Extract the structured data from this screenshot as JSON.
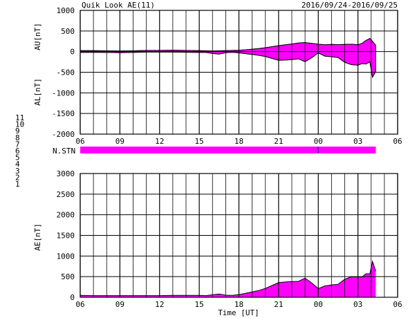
{
  "header": {
    "title": "Quik Look AE(11)",
    "date_range": "2016/09/24-2016/09/25"
  },
  "station_legend": {
    "entries": [
      {
        "label": "11",
        "color": "#00e0e0"
      },
      {
        "label": "10",
        "color": "#ff00ff"
      },
      {
        "label": "9",
        "color": "#2020c0"
      },
      {
        "label": "8",
        "color": "#e8e800"
      },
      {
        "label": "7",
        "color": "#a0e0a0"
      },
      {
        "label": "6",
        "color": "#ff0000"
      },
      {
        "label": "5",
        "color": "#c0c0c0"
      },
      {
        "label": "4",
        "color": "#a0a0a0"
      },
      {
        "label": "3",
        "color": "#20b0b0"
      },
      {
        "label": "2",
        "color": "#ff00ff"
      },
      {
        "label": "1",
        "color": "#2020c0"
      }
    ]
  },
  "stations_bar": {
    "label": "N.STN",
    "color": "#ff00ff",
    "divider_time": 24,
    "end_time": 28.35
  },
  "chart_data": [
    {
      "type": "area",
      "panel": "AU/AL",
      "ylabels": [
        "AU[nT]",
        "AL[nT]"
      ],
      "xlim": [
        6,
        30
      ],
      "ylim": [
        -2000,
        1000
      ],
      "yticks": [
        1000,
        500,
        0,
        -500,
        -1000,
        -1500,
        -2000
      ],
      "xticks": [
        "06",
        "09",
        "12",
        "15",
        "18",
        "21",
        "00",
        "03",
        "06"
      ],
      "grid": true,
      "fill_color": "#ff00ff",
      "x": [
        6,
        7,
        8,
        9,
        10,
        11,
        12,
        13,
        14,
        15,
        15.5,
        16,
        16.5,
        17,
        17.5,
        18,
        18.5,
        19,
        19.5,
        20,
        20.5,
        21,
        21.5,
        22,
        22.5,
        23,
        23.5,
        24,
        24.5,
        25,
        25.5,
        26,
        26.5,
        27,
        27.3,
        27.6,
        27.9,
        28.1,
        28.35
      ],
      "series": [
        {
          "name": "AU",
          "values": [
            25,
            25,
            20,
            15,
            20,
            30,
            30,
            35,
            30,
            25,
            20,
            15,
            20,
            25,
            30,
            35,
            45,
            60,
            75,
            95,
            120,
            145,
            165,
            185,
            210,
            220,
            200,
            180,
            165,
            175,
            170,
            175,
            180,
            165,
            200,
            270,
            320,
            250,
            150
          ]
        },
        {
          "name": "AL",
          "values": [
            -20,
            -15,
            -20,
            -25,
            -20,
            -10,
            -10,
            -10,
            -15,
            -20,
            -20,
            -45,
            -60,
            -25,
            -15,
            -30,
            -50,
            -70,
            -90,
            -120,
            -165,
            -210,
            -205,
            -195,
            -175,
            -245,
            -150,
            -30,
            -110,
            -125,
            -145,
            -260,
            -315,
            -330,
            -290,
            -300,
            -250,
            -620,
            -480
          ]
        }
      ]
    },
    {
      "type": "area",
      "panel": "AE",
      "ylabels": [
        "AE[nT]"
      ],
      "xlim": [
        6,
        30
      ],
      "ylim": [
        0,
        3000
      ],
      "yticks": [
        3000,
        2500,
        2000,
        1500,
        1000,
        500,
        0
      ],
      "xticks": [
        "06",
        "09",
        "12",
        "15",
        "18",
        "21",
        "00",
        "03",
        "06"
      ],
      "xlabel": "Time [UT]",
      "grid": true,
      "fill_color": "#ff00ff",
      "x": [
        6,
        7,
        8,
        9,
        10,
        11,
        12,
        13,
        14,
        15,
        15.5,
        16,
        16.5,
        17,
        17.5,
        18,
        18.5,
        19,
        19.5,
        20,
        20.5,
        21,
        21.5,
        22,
        22.5,
        23,
        23.5,
        24,
        24.5,
        25,
        25.5,
        26,
        26.5,
        27,
        27.3,
        27.6,
        27.9,
        28.1,
        28.35
      ],
      "series": [
        {
          "name": "AE",
          "values": [
            45,
            40,
            40,
            40,
            40,
            40,
            40,
            45,
            45,
            45,
            40,
            60,
            80,
            50,
            45,
            65,
            95,
            130,
            165,
            215,
            285,
            355,
            370,
            380,
            385,
            465,
            350,
            210,
            275,
            300,
            315,
            435,
            495,
            495,
            490,
            570,
            570,
            870,
            630
          ]
        }
      ]
    }
  ]
}
